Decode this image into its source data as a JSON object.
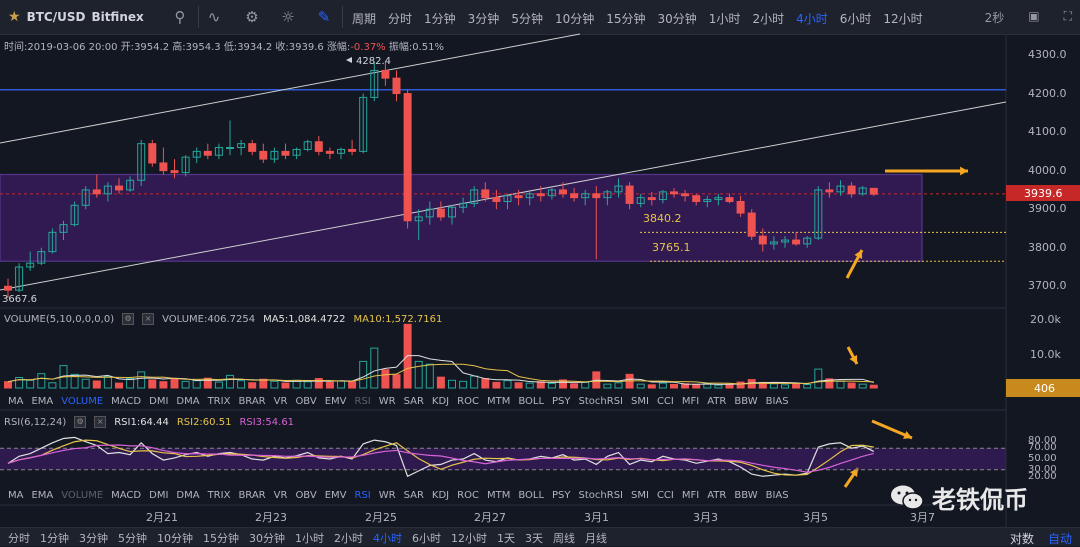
{
  "header": {
    "symbol": "BTC/USD",
    "exchange": "Bitfinex",
    "periods_label": "周期",
    "periods": [
      "分时",
      "1分钟",
      "3分钟",
      "5分钟",
      "10分钟",
      "15分钟",
      "30分钟",
      "1小时",
      "2小时",
      "4小时",
      "6小时",
      "12小时"
    ],
    "active_period": "4小时",
    "refresh": "2秒"
  },
  "info": {
    "time_label": "时间:",
    "time": "2019-03-06 20:00",
    "open_label": "开:",
    "open": "3954.2",
    "high_label": "高:",
    "high": "3954.3",
    "low_label": "低:",
    "low": "3934.2",
    "close_label": "收:",
    "close": "3939.6",
    "change_label": "涨幅:",
    "change": "-0.37%",
    "amp_label": "振幅:",
    "amp": "0.51%"
  },
  "chart_data": {
    "type": "candlestick",
    "price_axis": {
      "ticks": [
        "4300.0",
        "4200.0",
        "4100.0",
        "4000.0",
        "3900.0",
        "3800.0",
        "3700.0"
      ],
      "ylim": [
        3640,
        4340
      ]
    },
    "last_price_label": "3939.6",
    "annotations": {
      "high_label": "4282.4",
      "low_label": "3667.6",
      "level_a": "3840.2",
      "level_b": "3765.1"
    },
    "x_ticks": [
      "2月21",
      "2月23",
      "2月25",
      "2月27",
      "3月1",
      "3月3",
      "3月5",
      "3月7"
    ],
    "volume": {
      "header": "VOLUME(5,10,0,0,0,0)",
      "value_label": "VOLUME:406.7254",
      "ma5_label": "MA5:1,084.4722",
      "ma10_label": "MA10:1,572.7161",
      "ticks": [
        "20.0k",
        "10.0k"
      ],
      "last_label": "406"
    },
    "rsi": {
      "header": "RSI(6,12,24)",
      "rsi1_label": "RSI1:64.44",
      "rsi2_label": "RSI2:60.51",
      "rsi3_label": "RSI3:54.61",
      "ticks": [
        "80.00",
        "70.00",
        "50.00",
        "30.00",
        "20.00"
      ]
    }
  },
  "indicator_tabs": [
    "MA",
    "EMA",
    "VOLUME",
    "MACD",
    "DMI",
    "DMA",
    "TRIX",
    "BRAR",
    "VR",
    "OBV",
    "EMV",
    "RSI",
    "WR",
    "SAR",
    "KDJ",
    "ROC",
    "MTM",
    "BOLL",
    "PSY",
    "StochRSI",
    "SMI",
    "CCI",
    "MFI",
    "ATR",
    "BBW",
    "BIAS"
  ],
  "footer": {
    "periods": [
      "分时",
      "1分钟",
      "3分钟",
      "5分钟",
      "10分钟",
      "15分钟",
      "30分钟",
      "1小时",
      "2小时",
      "4小时",
      "6小时",
      "12小时",
      "1天",
      "3天",
      "周线",
      "月线"
    ],
    "active_period": "4小时",
    "log_label": "对数",
    "auto_label": "自动"
  },
  "watermark": "老铁侃币",
  "colors": {
    "up": "#26a69a",
    "down": "#ef5350",
    "accent": "#2962ff",
    "box": "#7b3fc4",
    "arrow": "#f5a623"
  }
}
